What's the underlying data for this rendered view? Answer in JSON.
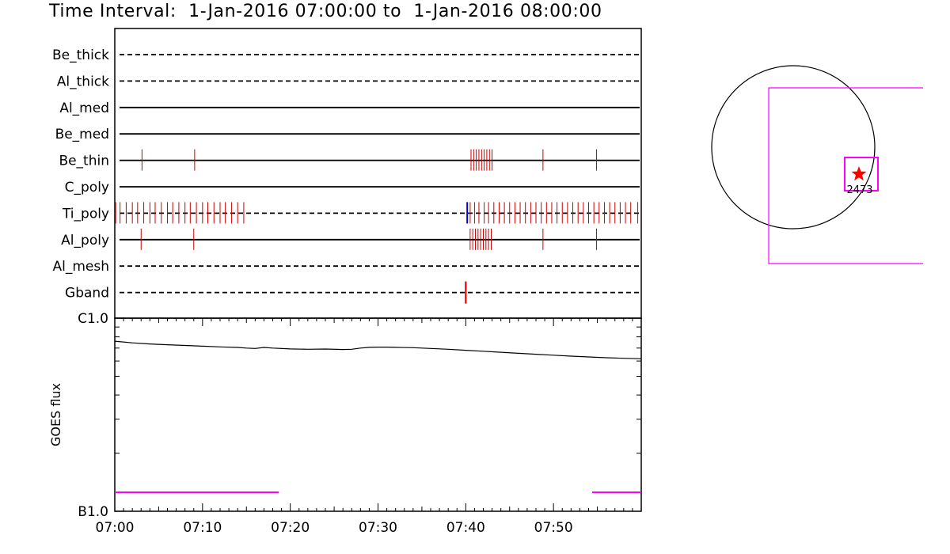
{
  "title": {
    "prefix": "Time Interval:",
    "start": "1-Jan-2016 07:00:00",
    "joiner": "to",
    "end": "1-Jan-2016 08:00:00"
  },
  "chart_data": [
    {
      "type": "event-timeline",
      "x_unit": "minutes after 07:00",
      "xlim": [
        0,
        60
      ],
      "x_tick_labels": [
        "07:00",
        "07:10",
        "07:20",
        "07:30",
        "07:40",
        "07:50"
      ],
      "x_tick_values": [
        0,
        10,
        20,
        30,
        40,
        50
      ],
      "rows": [
        {
          "label": "Be_thick",
          "line": "dashed",
          "events": []
        },
        {
          "label": "Al_thick",
          "line": "dashed",
          "events": []
        },
        {
          "label": "Al_med",
          "line": "solid",
          "events": []
        },
        {
          "label": "Be_med",
          "line": "solid",
          "events": []
        },
        {
          "label": "Be_thin",
          "line": "solid",
          "events": [
            3.1,
            9.1,
            40.6,
            40.9,
            41.2,
            41.5,
            41.8,
            42.1,
            42.4,
            42.7,
            43.0,
            48.8,
            54.9
          ]
        },
        {
          "label": "C_poly",
          "line": "solid",
          "events": []
        },
        {
          "label": "Ti_poly",
          "line": "dashed",
          "events": [
            0.1,
            0.6,
            1.3,
            2.0,
            2.6,
            3.3,
            4.0,
            4.6,
            5.3,
            6.0,
            6.6,
            7.3,
            8.0,
            8.6,
            9.3,
            10.0,
            10.6,
            11.3,
            12.0,
            12.6,
            13.3,
            14.0,
            14.7,
            40.1,
            40.5,
            41.0,
            41.5,
            42.1,
            42.6,
            43.2,
            43.8,
            44.4,
            45.0,
            45.6,
            46.2,
            46.8,
            47.4,
            48.0,
            48.6,
            49.2,
            49.8,
            50.4,
            51.0,
            51.6,
            52.2,
            52.8,
            53.4,
            54.0,
            54.6,
            55.2,
            55.8,
            56.4,
            57.0,
            57.6,
            58.2,
            58.8,
            59.6
          ],
          "marker_event": 40.2
        },
        {
          "label": "Al_poly",
          "line": "solid",
          "events": [
            3.0,
            9.0,
            40.5,
            40.8,
            41.1,
            41.4,
            41.7,
            42.0,
            42.3,
            42.6,
            42.9,
            48.8,
            54.9
          ]
        },
        {
          "label": "Al_mesh",
          "line": "dashed",
          "events": []
        },
        {
          "label": "Gband",
          "line": "dashed",
          "events": [
            40.0
          ],
          "event_style": "thick"
        }
      ]
    },
    {
      "type": "line",
      "ylabel": "GOES flux",
      "y_scale": "log",
      "y_tick_labels": [
        "C1.0",
        "B1.0"
      ],
      "y_tick_values": [
        1e-06,
        1e-07
      ],
      "xlim": [
        0,
        60
      ],
      "ylim": [
        1e-07,
        1e-06
      ],
      "series": [
        {
          "x": [
            0,
            2,
            4,
            6,
            8,
            10,
            12,
            14,
            15,
            16,
            17,
            18,
            20,
            22,
            24,
            26,
            27,
            28,
            29,
            30,
            31,
            32,
            34,
            36,
            38,
            40,
            42,
            44,
            46,
            48,
            50,
            52,
            54,
            56,
            58,
            60
          ],
          "y": [
            7.6e-07,
            7.45e-07,
            7.35e-07,
            7.28e-07,
            7.22e-07,
            7.16e-07,
            7.1e-07,
            7.05e-07,
            7e-07,
            6.97e-07,
            7.05e-07,
            7e-07,
            6.93e-07,
            6.9e-07,
            6.92e-07,
            6.88e-07,
            6.9e-07,
            7e-07,
            7.06e-07,
            7.08e-07,
            7.08e-07,
            7.06e-07,
            7.03e-07,
            6.97e-07,
            6.9e-07,
            6.82e-07,
            6.74e-07,
            6.66e-07,
            6.58e-07,
            6.5e-07,
            6.43e-07,
            6.36e-07,
            6.3e-07,
            6.24e-07,
            6.2e-07,
            6.16e-07
          ],
          "color": "#000000"
        }
      ],
      "bars": [
        {
          "x": [
            0,
            18.7
          ],
          "color": "#ff00ff"
        },
        {
          "x": [
            54.4,
            60
          ],
          "color": "#ff00ff"
        }
      ]
    },
    {
      "type": "locator",
      "active_region_label": "2473",
      "colors": {
        "disk": "#000000",
        "field_of_view": "#ff00ff",
        "marker": "#ff0000"
      }
    }
  ],
  "colors": {
    "events": "#cc0000",
    "marker_event": "#0000cc",
    "gband_event": "#ee0000"
  }
}
